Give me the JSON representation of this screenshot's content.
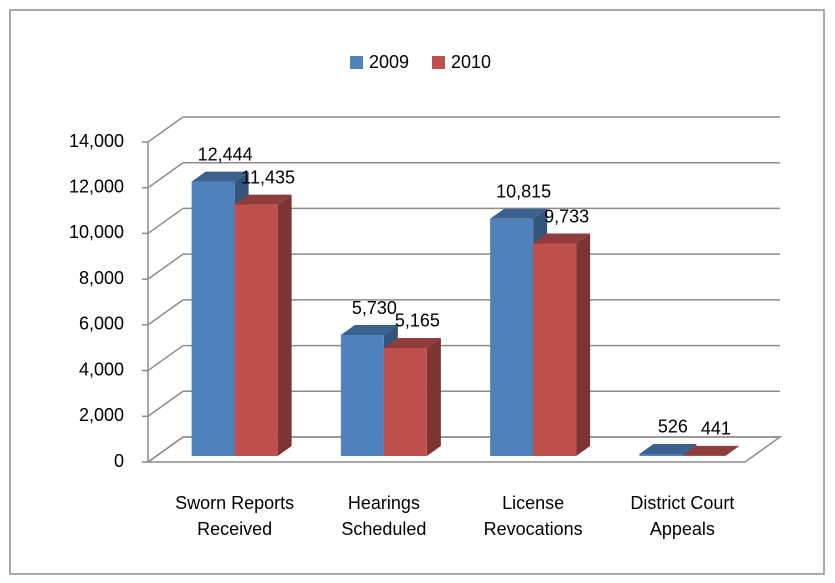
{
  "chart_data": {
    "type": "bar3d",
    "categories": [
      "Sworn Reports Received",
      "Hearings Scheduled",
      "License Revocations",
      "District Court Appeals"
    ],
    "series": [
      {
        "name": "2009",
        "color": "#4f81bd",
        "values": [
          12444,
          5730,
          10815,
          526
        ],
        "value_labels": [
          "12,444",
          "5,730",
          "10,815",
          "526"
        ]
      },
      {
        "name": "2010",
        "color": "#c0504d",
        "values": [
          11435,
          5165,
          9733,
          441
        ],
        "value_labels": [
          "11,435",
          "5,165",
          "9,733",
          "441"
        ]
      }
    ],
    "ylim": [
      0,
      14000
    ],
    "yticks": [
      0,
      {
        "value": 2000,
        "label": "2,000"
      },
      {
        "value": 4000,
        "label": "4,000"
      },
      {
        "value": 6000,
        "label": "6,000"
      },
      {
        "value": 8000,
        "label": "8,000"
      },
      {
        "value": 10000,
        "label": "10,000"
      },
      {
        "value": 12000,
        "label": "12,000"
      },
      {
        "value": 14000,
        "label": "14,000"
      }
    ],
    "grid": true,
    "legend": "top"
  }
}
